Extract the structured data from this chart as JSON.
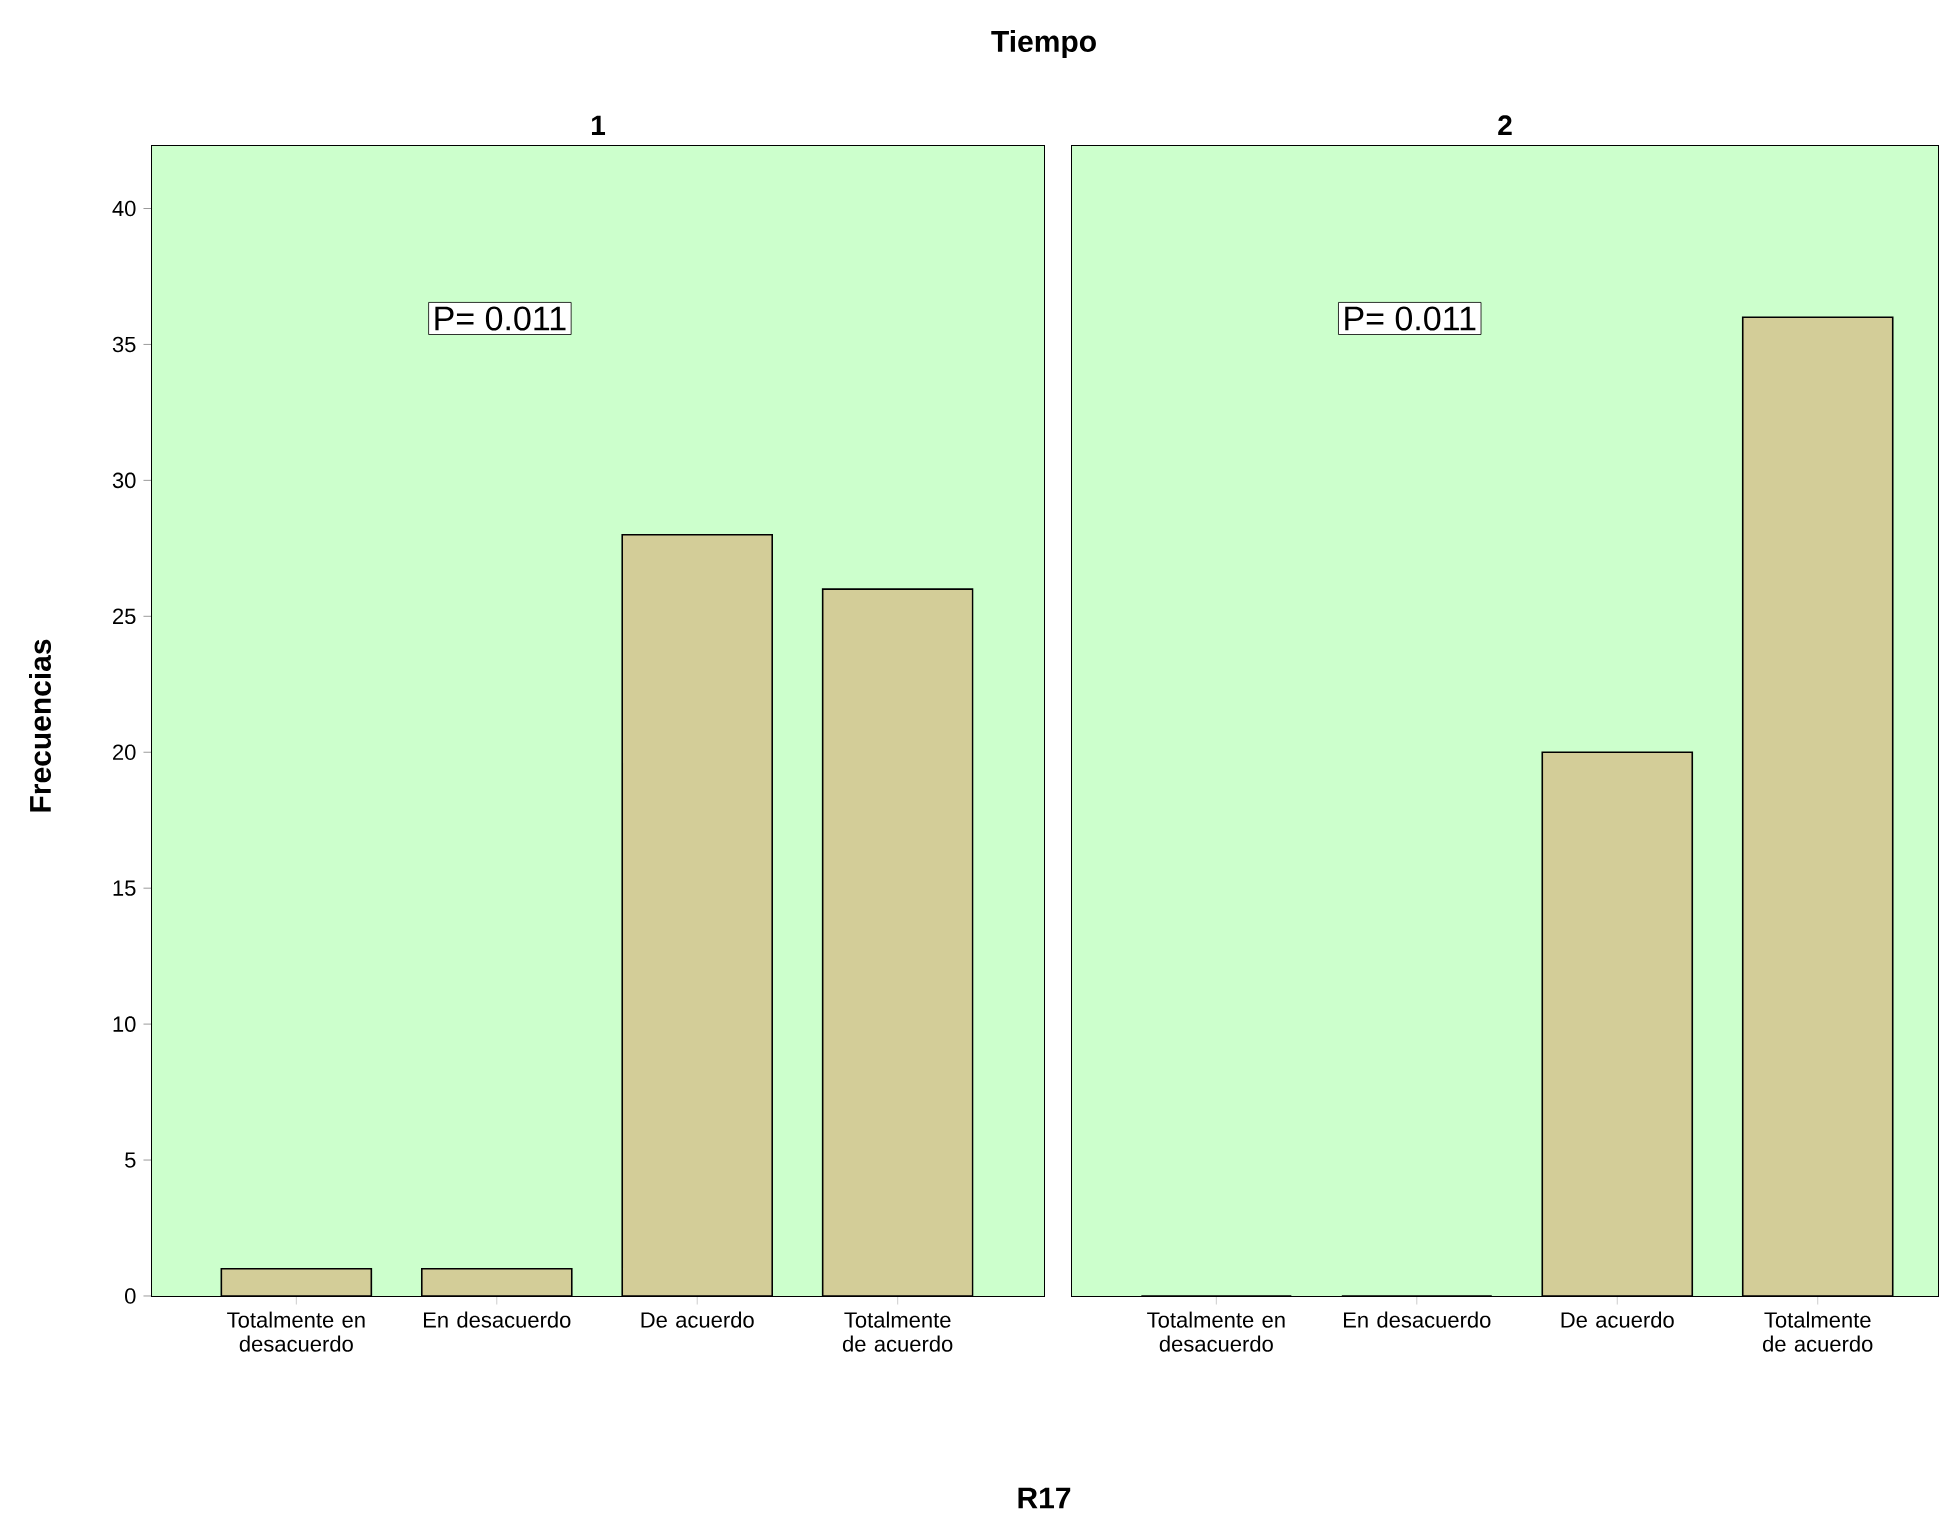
{
  "chart_data": [
    {
      "type": "bar",
      "title": "1",
      "subtitle": "Tiempo",
      "xlabel": "R17",
      "ylabel": "Frecuencias",
      "categories": [
        "Totalmente en desacuerdo",
        "En desacuerdo",
        "De acuerdo",
        "Totalmente de acuerdo"
      ],
      "values": [
        1,
        1,
        28,
        26
      ],
      "color": "#d3cd98",
      "ylim": [
        0,
        42.3
      ],
      "yticks": [
        0,
        5,
        10,
        15,
        20,
        25,
        30,
        35,
        40
      ],
      "annotations": [
        "P= 0.011"
      ]
    },
    {
      "type": "bar",
      "title": "2",
      "categories": [
        "Totalmente en desacuerdo",
        "En desacuerdo",
        "De acuerdo",
        "Totalmente de acuerdo"
      ],
      "values": [
        0,
        0,
        20,
        36
      ],
      "color": "#d3cd98",
      "ylim": [
        0,
        42.3
      ],
      "yticks": [
        0,
        5,
        10,
        15,
        20,
        25,
        30,
        35,
        40
      ],
      "tick_labels": "x",
      "annotations": [
        "P= 0.011"
      ]
    }
  ]
}
